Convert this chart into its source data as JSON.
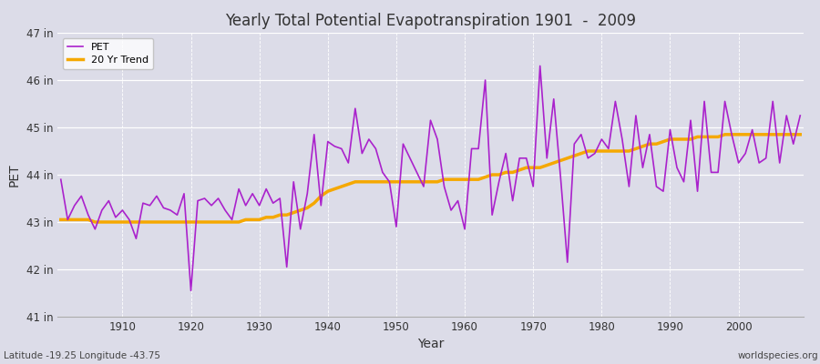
{
  "title": "Yearly Total Potential Evapotranspiration 1901  -  2009",
  "xlabel": "Year",
  "ylabel": "PET",
  "subtitle": "Latitude -19.25 Longitude -43.75",
  "watermark": "worldspecies.org",
  "pet_color": "#aa22cc",
  "trend_color": "#f5a800",
  "background_color": "#dcdce8",
  "ylim": [
    41,
    47
  ],
  "yticks": [
    41,
    42,
    43,
    44,
    45,
    46,
    47
  ],
  "ytick_labels": [
    "41 in",
    "42 in",
    "43 in",
    "44 in",
    "45 in",
    "46 in",
    "47 in"
  ],
  "years": [
    1901,
    1902,
    1903,
    1904,
    1905,
    1906,
    1907,
    1908,
    1909,
    1910,
    1911,
    1912,
    1913,
    1914,
    1915,
    1916,
    1917,
    1918,
    1919,
    1920,
    1921,
    1922,
    1923,
    1924,
    1925,
    1926,
    1927,
    1928,
    1929,
    1930,
    1931,
    1932,
    1933,
    1934,
    1935,
    1936,
    1937,
    1938,
    1939,
    1940,
    1941,
    1942,
    1943,
    1944,
    1945,
    1946,
    1947,
    1948,
    1949,
    1950,
    1951,
    1952,
    1953,
    1954,
    1955,
    1956,
    1957,
    1958,
    1959,
    1960,
    1961,
    1962,
    1963,
    1964,
    1965,
    1966,
    1967,
    1968,
    1969,
    1970,
    1971,
    1972,
    1973,
    1974,
    1975,
    1976,
    1977,
    1978,
    1979,
    1980,
    1981,
    1982,
    1983,
    1984,
    1985,
    1986,
    1987,
    1988,
    1989,
    1990,
    1991,
    1992,
    1993,
    1994,
    1995,
    1996,
    1997,
    1998,
    1999,
    2000,
    2001,
    2002,
    2003,
    2004,
    2005,
    2006,
    2007,
    2008,
    2009
  ],
  "pet_values": [
    43.9,
    43.05,
    43.35,
    43.55,
    43.15,
    42.85,
    43.25,
    43.45,
    43.1,
    43.25,
    43.05,
    42.65,
    43.4,
    43.35,
    43.55,
    43.3,
    43.25,
    43.15,
    43.6,
    41.55,
    43.45,
    43.5,
    43.35,
    43.5,
    43.25,
    43.05,
    43.7,
    43.35,
    43.6,
    43.35,
    43.7,
    43.4,
    43.5,
    42.05,
    43.85,
    42.85,
    43.6,
    44.85,
    43.35,
    44.7,
    44.6,
    44.55,
    44.25,
    45.4,
    44.45,
    44.75,
    44.55,
    44.05,
    43.85,
    42.9,
    44.65,
    44.35,
    44.05,
    43.75,
    45.15,
    44.75,
    43.75,
    43.25,
    43.45,
    42.85,
    44.55,
    44.55,
    46.0,
    43.15,
    43.85,
    44.45,
    43.45,
    44.35,
    44.35,
    43.75,
    46.3,
    44.35,
    45.6,
    43.95,
    42.15,
    44.65,
    44.85,
    44.35,
    44.45,
    44.75,
    44.55,
    45.55,
    44.75,
    43.75,
    45.25,
    44.15,
    44.85,
    43.75,
    43.65,
    44.95,
    44.15,
    43.85,
    45.15,
    43.65,
    45.55,
    44.05,
    44.05,
    45.55,
    44.85,
    44.25,
    44.45,
    44.95,
    44.25,
    44.35,
    45.55,
    44.25,
    45.25,
    44.65,
    45.25
  ],
  "trend_values": [
    43.05,
    43.05,
    43.05,
    43.05,
    43.05,
    43.0,
    43.0,
    43.0,
    43.0,
    43.0,
    43.0,
    43.0,
    43.0,
    43.0,
    43.0,
    43.0,
    43.0,
    43.0,
    43.0,
    43.0,
    43.0,
    43.0,
    43.0,
    43.0,
    43.0,
    43.0,
    43.0,
    43.05,
    43.05,
    43.05,
    43.1,
    43.1,
    43.15,
    43.15,
    43.2,
    43.25,
    43.3,
    43.4,
    43.55,
    43.65,
    43.7,
    43.75,
    43.8,
    43.85,
    43.85,
    43.85,
    43.85,
    43.85,
    43.85,
    43.85,
    43.85,
    43.85,
    43.85,
    43.85,
    43.85,
    43.85,
    43.9,
    43.9,
    43.9,
    43.9,
    43.9,
    43.9,
    43.95,
    44.0,
    44.0,
    44.05,
    44.05,
    44.1,
    44.15,
    44.15,
    44.15,
    44.2,
    44.25,
    44.3,
    44.35,
    44.4,
    44.45,
    44.5,
    44.5,
    44.5,
    44.5,
    44.5,
    44.5,
    44.5,
    44.55,
    44.6,
    44.65,
    44.65,
    44.7,
    44.75,
    44.75,
    44.75,
    44.75,
    44.8,
    44.8,
    44.8,
    44.8,
    44.85,
    44.85,
    44.85,
    44.85,
    44.85,
    44.85,
    44.85,
    44.85,
    44.85,
    44.85,
    44.85,
    44.85
  ]
}
